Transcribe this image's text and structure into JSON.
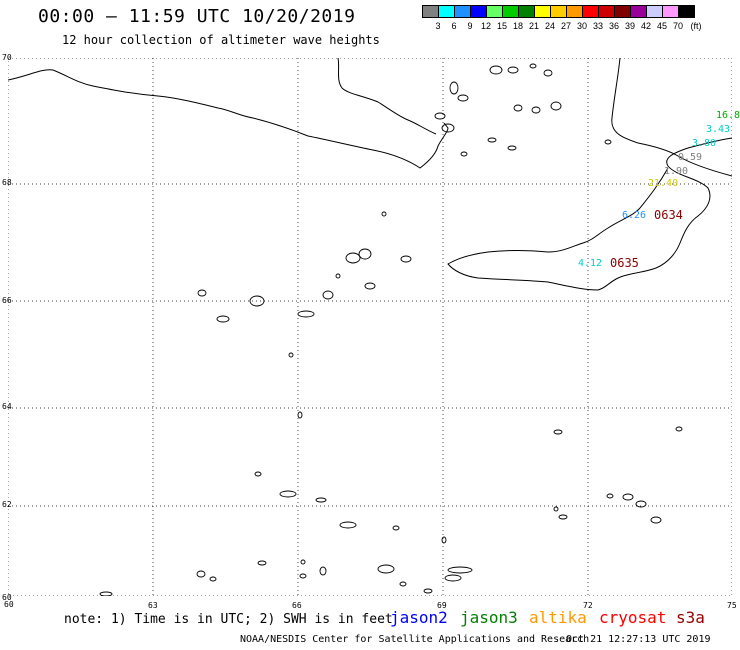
{
  "header": {
    "title": "00:00 – 11:59 UTC 10/20/2019",
    "subtitle": "12 hour collection of altimeter wave heights"
  },
  "scale": {
    "unit_label": "(ft)",
    "swatches": [
      {
        "label": "3",
        "color": "#808080"
      },
      {
        "label": "6",
        "color": "#00ffff"
      },
      {
        "label": "9",
        "color": "#1e90ff"
      },
      {
        "label": "12",
        "color": "#0000ff"
      },
      {
        "label": "15",
        "color": "#66ff66"
      },
      {
        "label": "18",
        "color": "#00cc00"
      },
      {
        "label": "21",
        "color": "#008000"
      },
      {
        "label": "24",
        "color": "#ffff00"
      },
      {
        "label": "27",
        "color": "#ffcc00"
      },
      {
        "label": "30",
        "color": "#ff9900"
      },
      {
        "label": "33",
        "color": "#ff0000"
      },
      {
        "label": "36",
        "color": "#cc0000"
      },
      {
        "label": "39",
        "color": "#800000"
      },
      {
        "label": "42",
        "color": "#990099"
      },
      {
        "label": "45",
        "color": "#ccccff"
      },
      {
        "label": "70",
        "color": "#ff99ff"
      },
      {
        "label": "",
        "color": "#000000"
      }
    ]
  },
  "map": {
    "lat_labels": [
      "70",
      "68",
      "66",
      "64",
      "62",
      "60"
    ],
    "lon_labels": [
      "60",
      "63",
      "66",
      "69",
      "72",
      "75"
    ],
    "observations": [
      {
        "text": "16.80",
        "color": "#00aa00"
      },
      {
        "text": "3.43",
        "color": "#00cccc"
      },
      {
        "text": "3.80",
        "color": "#00cccc"
      },
      {
        "text": "0.59",
        "color": "#808080"
      },
      {
        "text": "1.90",
        "color": "#808080"
      },
      {
        "text": "21.40",
        "color": "#cccc00"
      },
      {
        "text": "6.26",
        "color": "#1e90ff"
      },
      {
        "text": "4.12",
        "color": "#00cccc"
      }
    ],
    "passes": [
      "0634",
      "0635"
    ]
  },
  "footer": {
    "note": "note: 1) Time is in UTC; 2) SWH is in feet",
    "missions": [
      {
        "name": "jason2",
        "color": "#0000ff"
      },
      {
        "name": "jason3",
        "color": "#008000"
      },
      {
        "name": "altika",
        "color": "#ff9900"
      },
      {
        "name": "cryosat",
        "color": "#ff0000"
      },
      {
        "name": "s3a",
        "color": "#990000"
      }
    ],
    "credit": "NOAA/NESDIS Center for Satellite Applications and Research",
    "generated": "Oct 21 12:27:13 UTC 2019"
  }
}
